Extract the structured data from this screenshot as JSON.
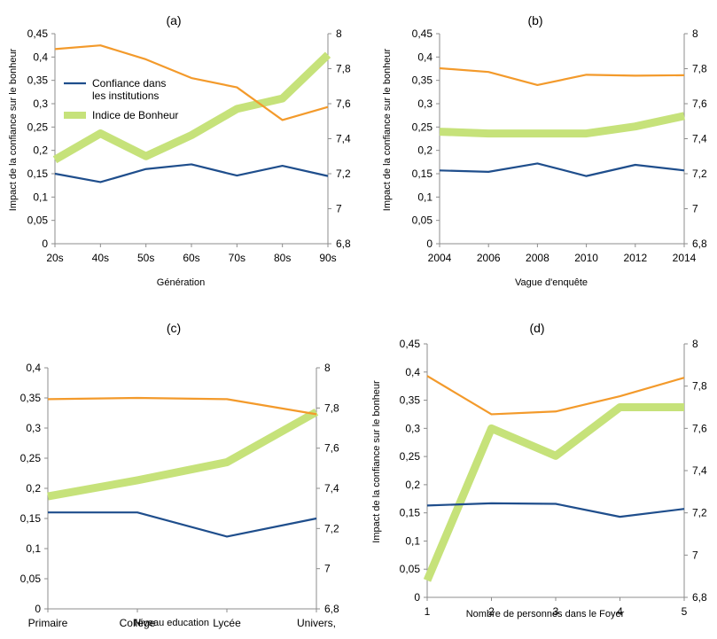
{
  "colors": {
    "confiance": "#1f4e8c",
    "bonheur": "#c6e27a",
    "third": "#f39a2b",
    "axis": "#8c8c8c",
    "grid": "#d9d9d9"
  },
  "chart_data": [
    {
      "type": "line",
      "title": "(a)",
      "xlabel": "Génération",
      "ylabel": "Impact de la confiance sur le bonheur",
      "categories": [
        "20s",
        "40s",
        "50s",
        "60s",
        "70s",
        "80s",
        "90s"
      ],
      "ylim": [
        0,
        0.45
      ],
      "y2lim": [
        6.8,
        8
      ],
      "yticks": [
        "0",
        "0,05",
        "0,1",
        "0,15",
        "0,2",
        "0,25",
        "0,3",
        "0,35",
        "0,4",
        "0,45"
      ],
      "y2ticks": [
        "6,8",
        "7",
        "7,2",
        "7,4",
        "7,6",
        "7,8",
        "8"
      ],
      "legend": {
        "placement": "upper-left",
        "entries": [
          "Confiance dans les institutions",
          "Indice de Bonheur"
        ]
      },
      "series": [
        {
          "name": "Confiance dans les institutions",
          "axis": "left",
          "style": "confiance",
          "values": [
            0.15,
            0.132,
            0.16,
            0.17,
            0.146,
            0.167,
            0.145
          ]
        },
        {
          "axis": "left",
          "style": "third",
          "values": [
            0.417,
            0.425,
            0.395,
            0.355,
            0.335,
            0.265,
            0.293
          ]
        },
        {
          "name": "Indice de Bonheur",
          "axis": "right",
          "style": "bonheur",
          "values": [
            7.28,
            7.43,
            7.3,
            7.42,
            7.57,
            7.63,
            7.88
          ]
        }
      ]
    },
    {
      "type": "line",
      "title": "(b)",
      "xlabel": "Vague d'enquête",
      "ylabel": "Impact de la confiance sur le bonheur",
      "categories": [
        "2004",
        "2006",
        "2008",
        "2010",
        "2012",
        "2014"
      ],
      "ylim": [
        0,
        0.45
      ],
      "y2lim": [
        6.8,
        8
      ],
      "yticks": [
        "0",
        "0,05",
        "0,1",
        "0,15",
        "0,2",
        "0,25",
        "0,3",
        "0,35",
        "0,4",
        "0,45"
      ],
      "y2ticks": [
        "6,8",
        "7",
        "7,2",
        "7,4",
        "7,6",
        "7,8",
        "8"
      ],
      "series": [
        {
          "axis": "left",
          "style": "confiance",
          "values": [
            0.157,
            0.154,
            0.172,
            0.145,
            0.169,
            0.157
          ]
        },
        {
          "axis": "left",
          "style": "third",
          "values": [
            0.376,
            0.368,
            0.34,
            0.362,
            0.36,
            0.361
          ]
        },
        {
          "axis": "right",
          "style": "bonheur",
          "values": [
            7.44,
            7.43,
            7.43,
            7.43,
            7.47,
            7.53
          ]
        }
      ]
    },
    {
      "type": "line",
      "title": "(c)",
      "xlabel": "Niveau education",
      "ylabel": "",
      "categories": [
        "Primaire",
        "Collège",
        "Lycée",
        "Univers,"
      ],
      "ylim": [
        0,
        0.4
      ],
      "y2lim": [
        6.8,
        8
      ],
      "yticks": [
        "0",
        "0,05",
        "0,1",
        "0,15",
        "0,2",
        "0,25",
        "0,3",
        "0,35",
        "0,4"
      ],
      "y2ticks": [
        "6,8",
        "7",
        "7,2",
        "7,4",
        "7,6",
        "7,8",
        "8"
      ],
      "series": [
        {
          "axis": "left",
          "style": "confiance",
          "values": [
            0.16,
            0.16,
            0.12,
            0.15
          ]
        },
        {
          "axis": "left",
          "style": "third",
          "values": [
            0.348,
            0.35,
            0.348,
            0.323
          ]
        },
        {
          "axis": "right",
          "style": "bonheur",
          "values": [
            7.36,
            7.44,
            7.53,
            7.78
          ]
        }
      ]
    },
    {
      "type": "line",
      "title": "(d)",
      "xlabel": "Nombre de personnes dans le Foyer",
      "ylabel": "Impact de la confiance sur le bonheur",
      "categories": [
        "1",
        "2",
        "3",
        "4",
        "5"
      ],
      "ylim": [
        0,
        0.45
      ],
      "y2lim": [
        6.8,
        8
      ],
      "yticks": [
        "0",
        "0,05",
        "0,1",
        "0,15",
        "0,2",
        "0,25",
        "0,3",
        "0,35",
        "0,4",
        "0,45"
      ],
      "y2ticks": [
        "6,8",
        "7",
        "7,2",
        "7,4",
        "7,6",
        "7,8",
        "8"
      ],
      "series": [
        {
          "axis": "left",
          "style": "confiance",
          "values": [
            0.163,
            0.167,
            0.166,
            0.143,
            0.157
          ]
        },
        {
          "axis": "left",
          "style": "third",
          "values": [
            0.393,
            0.325,
            0.33,
            0.357,
            0.39
          ]
        },
        {
          "axis": "right",
          "style": "bonheur",
          "values": [
            6.88,
            7.6,
            7.47,
            7.7,
            7.7
          ]
        }
      ]
    }
  ]
}
